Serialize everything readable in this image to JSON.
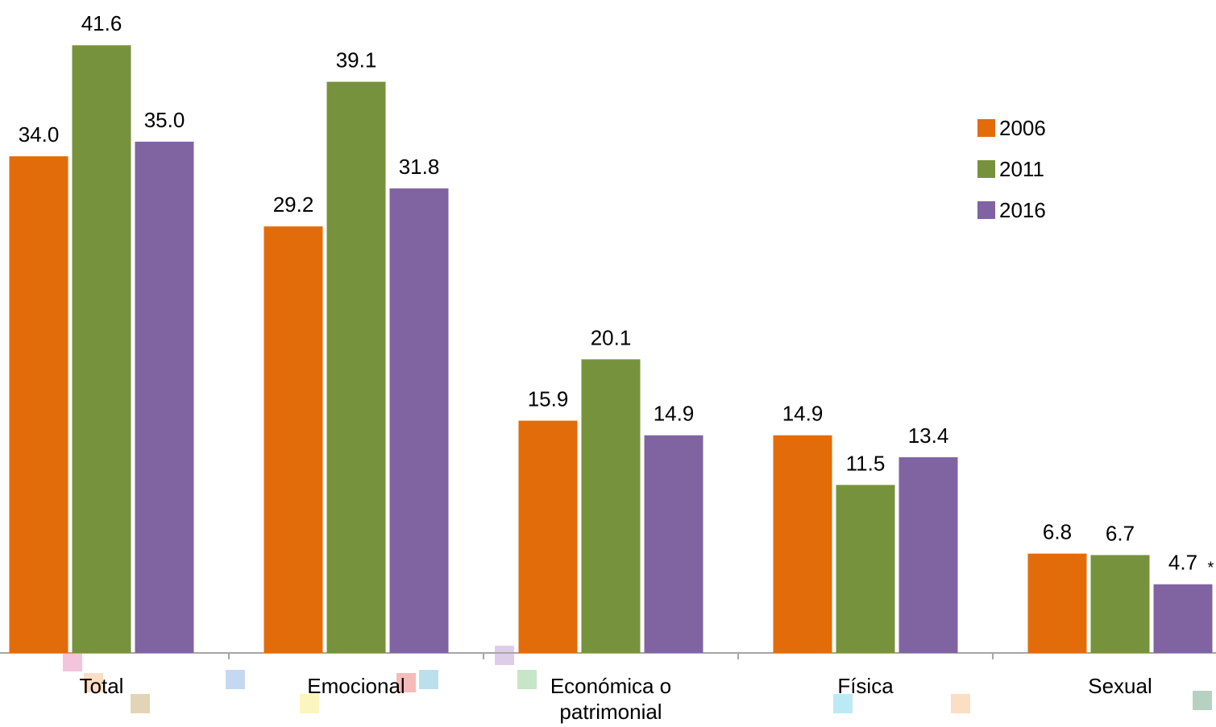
{
  "chart_data": {
    "type": "bar",
    "categories": [
      "Total",
      "Emocional",
      "Económica o patrimonial",
      "Física",
      "Sexual"
    ],
    "series": [
      {
        "name": "2006",
        "color": "#e36c0a",
        "values": [
          34,
          29.2,
          15.9,
          14.9,
          6.8
        ],
        "value_labels": [
          "34.0",
          "29.2",
          "15.9",
          "14.9",
          "6.8"
        ]
      },
      {
        "name": "2011",
        "color": "#77923c",
        "values": [
          41.6,
          39.1,
          20.1,
          11.5,
          6.7
        ],
        "value_labels": [
          "41.6",
          "39.1",
          "20.1",
          "11.5",
          "6.7"
        ]
      },
      {
        "name": "2016",
        "color": "#8064a2",
        "values": [
          35,
          31.8,
          14.9,
          13.4,
          4.7
        ],
        "value_labels": [
          "35.0",
          "31.8",
          "14.9",
          "13.4",
          "4.7"
        ]
      }
    ],
    "annotation": "*",
    "ylim": [
      0,
      44.7
    ],
    "legend": "right"
  }
}
